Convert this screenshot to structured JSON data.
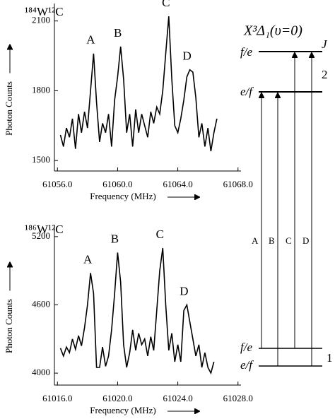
{
  "chart_data": [
    {
      "type": "line",
      "label": "¹⁸⁴W¹²C",
      "x_label": "Frequency (MHz)",
      "y_label": "Photon Counts",
      "annotations": [
        "A",
        "B",
        "C",
        "D"
      ],
      "color": "#000000",
      "xlim": [
        61055.8,
        61068.2
      ],
      "ylim": [
        1455,
        2175
      ],
      "xticks": [
        {
          "value": 61056.0,
          "label": "61056.0"
        },
        {
          "value": 61060.0,
          "label": "61060.0"
        },
        {
          "value": 61064.0,
          "label": "61064.0"
        },
        {
          "value": 61068.0,
          "label": "61068.0"
        }
      ],
      "yticks": [
        1500,
        1800,
        2100
      ],
      "x": [
        61056.2,
        61056.4,
        61056.6,
        61056.8,
        61057.0,
        61057.2,
        61057.4,
        61057.6,
        61057.8,
        61058.0,
        61058.2,
        61058.4,
        61058.6,
        61058.8,
        61059.0,
        61059.2,
        61059.4,
        61059.6,
        61059.8,
        61060.0,
        61060.2,
        61060.4,
        61060.6,
        61060.8,
        61061.0,
        61061.2,
        61061.4,
        61061.6,
        61061.8,
        61062.0,
        61062.2,
        61062.4,
        61062.6,
        61062.8,
        61063.0,
        61063.2,
        61063.4,
        61063.6,
        61063.8,
        61064.0,
        61064.2,
        61064.4,
        61064.6,
        61064.8,
        61065.0,
        61065.2,
        61065.4,
        61065.6,
        61065.8,
        61066.0,
        61066.2,
        61066.4,
        61066.6
      ],
      "values": [
        1610,
        1560,
        1640,
        1600,
        1680,
        1550,
        1700,
        1620,
        1710,
        1640,
        1800,
        1960,
        1750,
        1580,
        1660,
        1620,
        1700,
        1560,
        1760,
        1860,
        1990,
        1850,
        1620,
        1700,
        1560,
        1720,
        1620,
        1700,
        1650,
        1600,
        1710,
        1660,
        1730,
        1700,
        1800,
        1960,
        2120,
        1850,
        1650,
        1620,
        1680,
        1760,
        1860,
        1890,
        1880,
        1770,
        1600,
        1660,
        1560,
        1640,
        1540,
        1620,
        1680
      ]
    },
    {
      "type": "line",
      "label": "¹⁸⁶W¹²C",
      "x_label": "Frequency (MHz)",
      "y_label": "Photon Counts",
      "annotations": [
        "A",
        "B",
        "C",
        "D"
      ],
      "color": "#000000",
      "xlim": [
        61015.8,
        61028.2
      ],
      "ylim": [
        3895,
        5305
      ],
      "xticks": [
        {
          "value": 61016.0,
          "label": "61016.0"
        },
        {
          "value": 61020.0,
          "label": "61020.0"
        },
        {
          "value": 61024.0,
          "label": "61024.0"
        },
        {
          "value": 61028.0,
          "label": "61028.0"
        }
      ],
      "yticks": [
        4000,
        4600,
        5200
      ],
      "x": [
        61016.2,
        61016.4,
        61016.6,
        61016.8,
        61017.0,
        61017.2,
        61017.4,
        61017.6,
        61017.8,
        61018.0,
        61018.2,
        61018.4,
        61018.6,
        61018.8,
        61019.0,
        61019.2,
        61019.4,
        61019.6,
        61019.8,
        61020.0,
        61020.2,
        61020.4,
        61020.6,
        61020.8,
        61021.0,
        61021.2,
        61021.4,
        61021.6,
        61021.8,
        61022.0,
        61022.2,
        61022.4,
        61022.6,
        61022.8,
        61023.0,
        61023.2,
        61023.4,
        61023.6,
        61023.8,
        61024.0,
        61024.2,
        61024.4,
        61024.6,
        61024.8,
        61025.0,
        61025.2,
        61025.4,
        61025.6,
        61025.8,
        61026.0,
        61026.2,
        61026.4
      ],
      "values": [
        4220,
        4150,
        4230,
        4180,
        4300,
        4210,
        4330,
        4240,
        4400,
        4600,
        4880,
        4700,
        4050,
        4050,
        4230,
        4060,
        4150,
        4380,
        4700,
        5060,
        4800,
        4250,
        4050,
        4180,
        4380,
        4200,
        4350,
        4250,
        4300,
        4150,
        4320,
        4200,
        4550,
        4900,
        5100,
        4600,
        4200,
        4350,
        4100,
        4250,
        4100,
        4550,
        4600,
        4450,
        4300,
        4150,
        4250,
        4050,
        4180,
        4050,
        4000,
        4100
      ]
    }
  ],
  "diagram": {
    "title": "X³Δ₁(υ=0)",
    "j_label": "J",
    "upper": {
      "j": "2",
      "levels": [
        "f/e",
        "e/f"
      ]
    },
    "lower": {
      "j": "1",
      "levels": [
        "f/e",
        "e/f"
      ]
    },
    "transitions": [
      "A",
      "B",
      "C",
      "D"
    ]
  }
}
